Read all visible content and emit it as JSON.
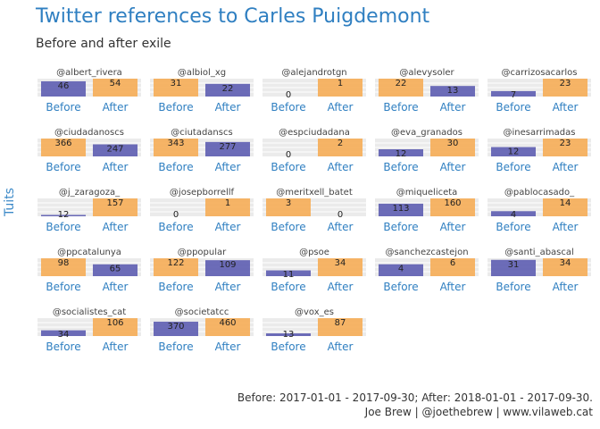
{
  "chart_data": {
    "type": "bar",
    "title": "Twitter references to Carles Puigdemont",
    "subtitle": "Before and after exile",
    "ylabel": "Tuits",
    "categories": [
      "Before",
      "After"
    ],
    "colors": {
      "Before": "#f6b05e",
      "After": "#6464b4",
      "lower": "#6464b4",
      "text": "#2f7fc1"
    },
    "facets": [
      {
        "account": "@albert_rivera",
        "values": [
          46,
          54
        ]
      },
      {
        "account": "@albiol_xg",
        "values": [
          31,
          22
        ]
      },
      {
        "account": "@alejandrotgn",
        "values": [
          0,
          1
        ]
      },
      {
        "account": "@alevysoler",
        "values": [
          22,
          13
        ]
      },
      {
        "account": "@carrizosacarlos",
        "values": [
          7,
          23
        ]
      },
      {
        "account": "@ciudadanoscs",
        "values": [
          366,
          247
        ]
      },
      {
        "account": "@ciutadanscs",
        "values": [
          343,
          277
        ]
      },
      {
        "account": "@espciudadana",
        "values": [
          0,
          2
        ]
      },
      {
        "account": "@eva_granados",
        "values": [
          12,
          30
        ]
      },
      {
        "account": "@inesarrimadas",
        "values": [
          12,
          23
        ]
      },
      {
        "account": "@j_zaragoza_",
        "values": [
          12,
          157
        ]
      },
      {
        "account": "@josepborrellf",
        "values": [
          0,
          1
        ]
      },
      {
        "account": "@meritxell_batet",
        "values": [
          3,
          0
        ]
      },
      {
        "account": "@miqueliceta",
        "values": [
          113,
          160
        ]
      },
      {
        "account": "@pablocasado_",
        "values": [
          4,
          14
        ]
      },
      {
        "account": "@ppcatalunya",
        "values": [
          98,
          65
        ]
      },
      {
        "account": "@ppopular",
        "values": [
          122,
          109
        ]
      },
      {
        "account": "@psoe",
        "values": [
          11,
          34
        ]
      },
      {
        "account": "@sanchezcastejon",
        "values": [
          4,
          6
        ]
      },
      {
        "account": "@santi_abascal",
        "values": [
          31,
          34
        ]
      },
      {
        "account": "@socialistes_cat",
        "values": [
          34,
          106
        ]
      },
      {
        "account": "@societatcc",
        "values": [
          370,
          460
        ]
      },
      {
        "account": "@vox_es",
        "values": [
          13,
          87
        ]
      }
    ],
    "caption": [
      "Before: 2017-01-01 - 2017-09-30; After: 2018-01-01 - 2017-09-30.",
      "Joe Brew | @joethebrew | www.vilaweb.cat"
    ],
    "scales": "free_y",
    "grid": true,
    "legend": "none"
  }
}
